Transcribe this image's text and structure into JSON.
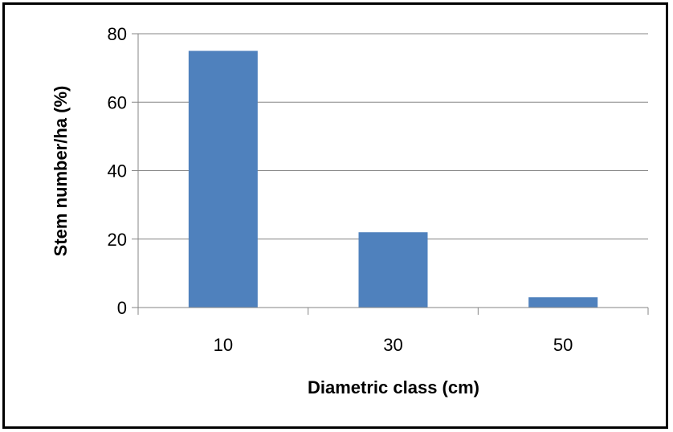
{
  "chart_data": {
    "type": "bar",
    "categories": [
      "10",
      "30",
      "50"
    ],
    "values": [
      75,
      22,
      3
    ],
    "title": "",
    "xlabel": "Diametric class (cm)",
    "ylabel": "Stem number/ha (%)",
    "ylim": [
      0,
      80
    ],
    "yticks": [
      "0",
      "20",
      "40",
      "60",
      "80"
    ],
    "grid": true,
    "legend": "none",
    "colors": {
      "bar": "#4f81bd",
      "grid": "#868686",
      "axis": "#868686"
    }
  }
}
